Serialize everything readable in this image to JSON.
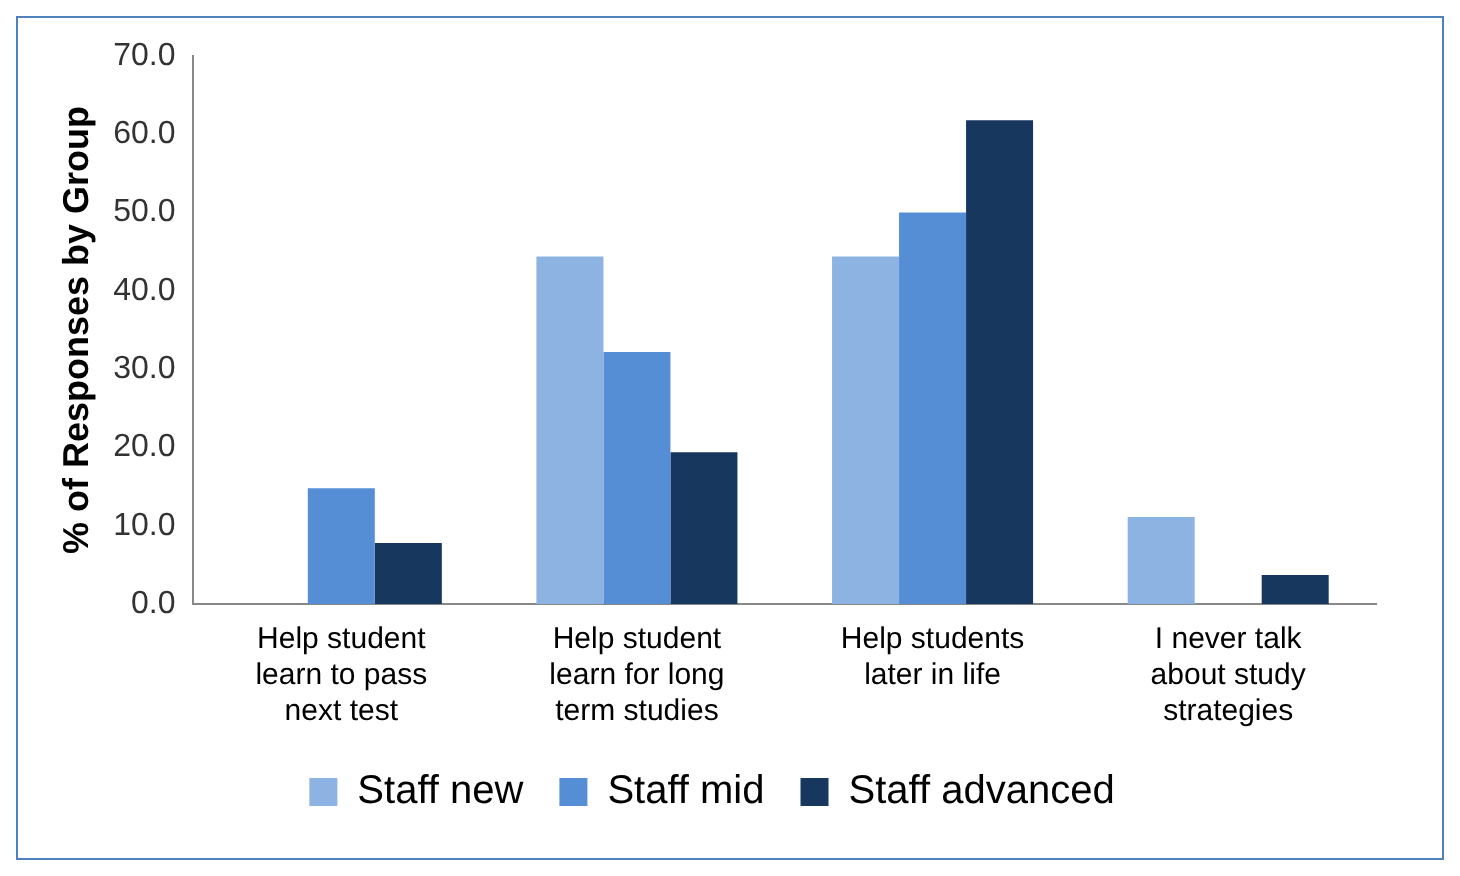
{
  "chart_data": {
    "type": "bar",
    "ylabel": "% of Responses by Group",
    "categories": [
      "Help student learn to pass next test",
      "Help student learn for long term studies",
      "Help students later in life",
      "I never talk about study strategies"
    ],
    "series": [
      {
        "name": "Staff new",
        "color": "#8db3e2",
        "values": [
          0,
          44.4,
          44.4,
          11.1
        ]
      },
      {
        "name": "Staff mid",
        "color": "#558ed5",
        "values": [
          14.8,
          32.2,
          50.0,
          0
        ]
      },
      {
        "name": "Staff advanced",
        "color": "#17375e",
        "values": [
          7.8,
          19.4,
          61.8,
          3.7
        ]
      }
    ],
    "ylim": [
      0,
      70
    ],
    "yticks": [
      {
        "value": 0,
        "label": "0.0"
      },
      {
        "value": 10,
        "label": "10.0"
      },
      {
        "value": 20,
        "label": "20.0"
      },
      {
        "value": 30,
        "label": "30.0"
      },
      {
        "value": 40,
        "label": "40.0"
      },
      {
        "value": 50,
        "label": "50.0"
      },
      {
        "value": 60,
        "label": "60.0"
      },
      {
        "value": 70,
        "label": "70.0"
      }
    ],
    "grid": false,
    "legend": "bottom"
  }
}
